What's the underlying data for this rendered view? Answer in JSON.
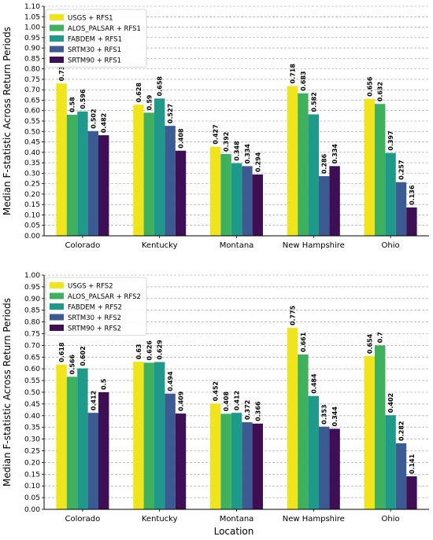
{
  "figure": {
    "xlabel": "Location"
  },
  "colors": [
    "#f0e51c",
    "#3fb05e",
    "#1f9a8a",
    "#3b5b92",
    "#3f0f56"
  ],
  "chart_data": [
    {
      "type": "bar",
      "categories": [
        "Colorado",
        "Kentucky",
        "Montana",
        "New Hampshire",
        "Ohio"
      ],
      "ylabel": "Median F-statistic Across Return Periods",
      "xlabel": "",
      "ylim": [
        0,
        1.1
      ],
      "yticks": [
        "0.00",
        "0.05",
        "0.10",
        "0.15",
        "0.20",
        "0.25",
        "0.30",
        "0.35",
        "0.40",
        "0.45",
        "0.50",
        "0.55",
        "0.60",
        "0.65",
        "0.70",
        "0.75",
        "0.80",
        "0.85",
        "0.90",
        "0.95",
        "1.00",
        "1.05",
        "1.10"
      ],
      "grid": "horizontal dashed",
      "legend_position": "top-left",
      "series": [
        {
          "name": "USGS + RFS1",
          "values": [
            0.73,
            0.628,
            0.427,
            0.718,
            0.656
          ],
          "labels": [
            "0.73",
            "0.628",
            "0.427",
            "0.718",
            "0.656"
          ]
        },
        {
          "name": "ALOS_PALSAR + RFS1",
          "values": [
            0.58,
            0.59,
            0.392,
            0.683,
            0.632
          ],
          "labels": [
            "0.58",
            "0.59",
            "0.392",
            "0.683",
            "0.632"
          ]
        },
        {
          "name": "FABDEM + RFS1",
          "values": [
            0.596,
            0.658,
            0.348,
            0.582,
            0.397
          ],
          "labels": [
            "0.596",
            "0.658",
            "0.348",
            "0.582",
            "0.397"
          ]
        },
        {
          "name": "SRTM30 + RFS1",
          "values": [
            0.502,
            0.527,
            0.334,
            0.286,
            0.257
          ],
          "labels": [
            "0.502",
            "0.527",
            "0.334",
            "0.286",
            "0.257"
          ]
        },
        {
          "name": "SRTM90 + RFS1",
          "values": [
            0.482,
            0.408,
            0.294,
            0.334,
            0.136
          ],
          "labels": [
            "0.482",
            "0.408",
            "0.294",
            "0.334",
            "0.136"
          ]
        }
      ]
    },
    {
      "type": "bar",
      "categories": [
        "Colorado",
        "Kentucky",
        "Montana",
        "New Hampshire",
        "Ohio"
      ],
      "ylabel": "Median F-statistic Across Return Periods",
      "xlabel": "Location",
      "ylim": [
        0,
        1.0
      ],
      "yticks": [
        "0.00",
        "0.05",
        "0.10",
        "0.15",
        "0.20",
        "0.25",
        "0.30",
        "0.35",
        "0.40",
        "0.45",
        "0.50",
        "0.55",
        "0.60",
        "0.65",
        "0.70",
        "0.75",
        "0.80",
        "0.85",
        "0.90",
        "0.95",
        "1.00"
      ],
      "grid": "horizontal dashed",
      "legend_position": "top-left",
      "series": [
        {
          "name": "USGS + RFS2",
          "values": [
            0.618,
            0.63,
            0.452,
            0.775,
            0.654
          ],
          "labels": [
            "0.618",
            "0.63",
            "0.452",
            "0.775",
            "0.654"
          ]
        },
        {
          "name": "ALOS_PALSAR + RFS2",
          "values": [
            0.566,
            0.626,
            0.408,
            0.661,
            0.7
          ],
          "labels": [
            "0.566",
            "0.626",
            "0.408",
            "0.661",
            "0.7"
          ]
        },
        {
          "name": "FABDEM + RFS2",
          "values": [
            0.602,
            0.629,
            0.412,
            0.484,
            0.402
          ],
          "labels": [
            "0.602",
            "0.629",
            "0.412",
            "0.484",
            "0.402"
          ]
        },
        {
          "name": "SRTM30 + RFS2",
          "values": [
            0.412,
            0.494,
            0.372,
            0.353,
            0.282
          ],
          "labels": [
            "0.412",
            "0.494",
            "0.372",
            "0.353",
            "0.282"
          ]
        },
        {
          "name": "SRTM90 + RFS2",
          "values": [
            0.5,
            0.409,
            0.366,
            0.344,
            0.141
          ],
          "labels": [
            "0.5",
            "0.409",
            "0.366",
            "0.344",
            "0.141"
          ]
        }
      ]
    }
  ]
}
